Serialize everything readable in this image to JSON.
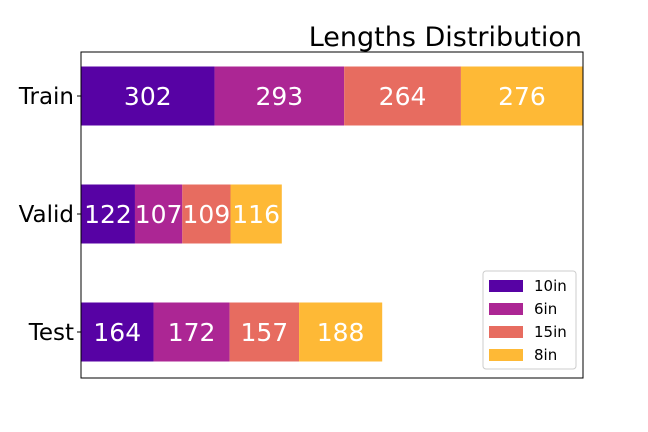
{
  "chart_data": {
    "type": "bar",
    "orientation": "horizontal",
    "stacked": true,
    "title": "Lengths Distribution",
    "xlabel": "",
    "ylabel": "",
    "categories": [
      "Train",
      "Valid",
      "Test"
    ],
    "series": [
      {
        "name": "10in",
        "color": "#5702a4",
        "values": [
          302,
          122,
          164
        ]
      },
      {
        "name": "6in",
        "color": "#ac2694",
        "values": [
          293,
          107,
          172
        ]
      },
      {
        "name": "15in",
        "color": "#e76c60",
        "values": [
          264,
          109,
          157
        ]
      },
      {
        "name": "8in",
        "color": "#feb936",
        "values": [
          276,
          116,
          188
        ]
      }
    ],
    "xlim": [
      0,
      1135
    ],
    "grid": false,
    "legend_position": "lower-right",
    "show_x_ticks": false
  }
}
